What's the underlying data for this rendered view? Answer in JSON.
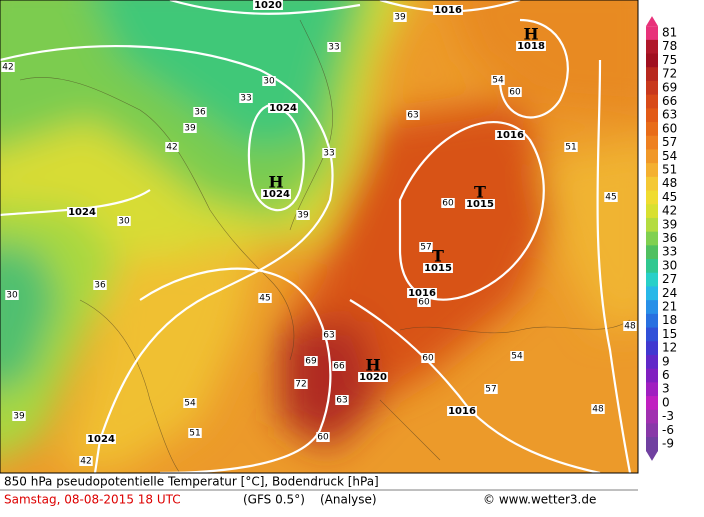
{
  "colorbar": {
    "levels": [
      81,
      78,
      75,
      72,
      69,
      66,
      63,
      60,
      57,
      54,
      51,
      48,
      45,
      42,
      39,
      36,
      33,
      30,
      27,
      24,
      21,
      18,
      15,
      12,
      9,
      6,
      3,
      0,
      -3,
      -6,
      -9
    ],
    "colors": [
      "#e8327a",
      "#b0182a",
      "#a01020",
      "#b8281e",
      "#c8381c",
      "#d84a18",
      "#e25a16",
      "#e86c18",
      "#ee8020",
      "#f09828",
      "#f4b030",
      "#f4c834",
      "#f0dc30",
      "#d8e030",
      "#b4dc40",
      "#80d050",
      "#50c060",
      "#30c890",
      "#28d0c8",
      "#28b8e8",
      "#2890e8",
      "#2870e0",
      "#3050d8",
      "#4038d0",
      "#6028c8",
      "#8020c0",
      "#a020c0",
      "#c020c0",
      "#a030b0",
      "#8838a8",
      "#7040a0"
    ]
  },
  "centers": [
    {
      "letter": "H",
      "pressure": 1024
    },
    {
      "letter": "T",
      "pressure": 1015
    },
    {
      "letter": "T",
      "pressure": 1015
    },
    {
      "letter": "H",
      "pressure": 1020
    },
    {
      "letter": "H",
      "pressure": 1018
    }
  ],
  "isobar_labels": [
    1020,
    1016,
    1024,
    1016,
    1024,
    1016,
    1016,
    1024
  ],
  "temperature_labels": [
    39,
    42,
    33,
    30,
    33,
    36,
    39,
    42,
    33,
    39,
    30,
    30,
    36,
    45,
    60,
    57,
    60,
    63,
    69,
    66,
    72,
    63,
    54,
    51,
    57,
    54,
    60,
    48,
    45,
    51,
    54,
    60,
    63,
    48,
    39,
    42,
    60
  ],
  "footer": {
    "title": "850 hPa pseudopotentielle Temperatur [°C], Bodendruck [hPa]",
    "date": "Samstag, 08-08-2015  18 UTC",
    "model": "(GFS 0.5°)",
    "run": "(Analyse)",
    "source": "© www.wetter3.de"
  }
}
